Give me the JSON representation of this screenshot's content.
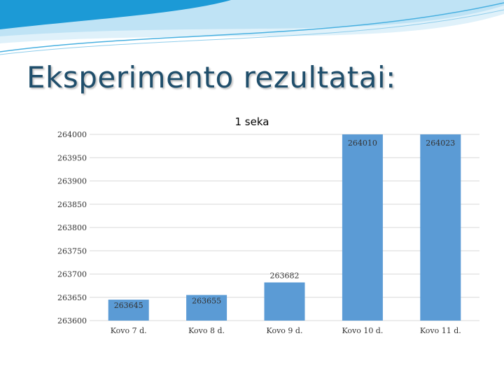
{
  "slide": {
    "title": "Eksperimento rezultatai:"
  },
  "colors": {
    "bar": "#5b9bd5",
    "title": "#1f4e6b",
    "swoosh_dark": "#1c9ad6",
    "swoosh_light": "#bfe3f5",
    "grid": "#d9d9d9"
  },
  "chart_data": {
    "type": "bar",
    "title": "1 seka",
    "categories": [
      "Kovo 7 d.",
      "Kovo 8 d.",
      "Kovo 9 d.",
      "Kovo 10 d.",
      "Kovo 11 d."
    ],
    "series": [
      {
        "values": [
          263645,
          263655,
          263682,
          264010,
          264023
        ]
      }
    ],
    "data_labels": [
      "263645",
      "263655",
      "263682",
      "264010",
      "264023"
    ],
    "ylim": [
      263600,
      264000
    ],
    "yticks": [
      263600,
      263650,
      263700,
      263750,
      263800,
      263850,
      263900,
      263950,
      264000
    ],
    "xlabel": "",
    "ylabel": "",
    "grid": true,
    "legend": "none"
  }
}
